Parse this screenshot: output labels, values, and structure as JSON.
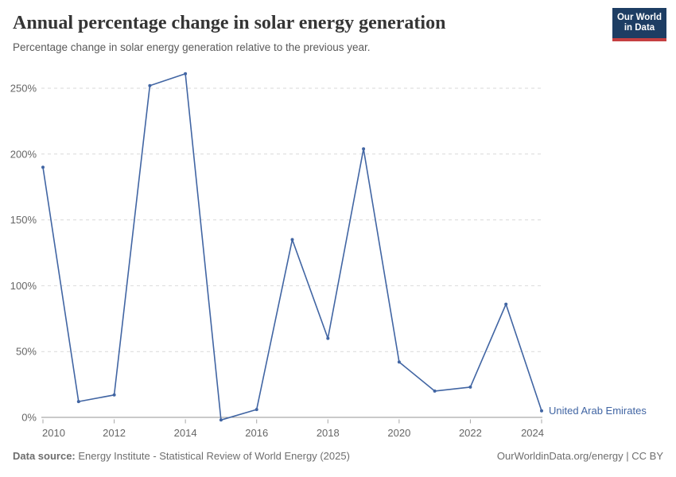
{
  "header": {
    "title": "Annual percentage change in solar energy generation",
    "subtitle": "Percentage change in solar energy generation relative to the previous year.",
    "logo": {
      "line1": "Our World",
      "line2": "in Data"
    }
  },
  "chart_data": {
    "type": "line",
    "title": "Annual percentage change in solar energy generation",
    "x": [
      2010,
      2011,
      2012,
      2013,
      2014,
      2015,
      2016,
      2017,
      2018,
      2019,
      2020,
      2021,
      2022,
      2023,
      2024
    ],
    "series": [
      {
        "name": "United Arab Emirates",
        "values": [
          190,
          12,
          17,
          252,
          261,
          -2,
          6,
          135,
          60,
          204,
          42,
          20,
          23,
          86,
          5
        ],
        "color": "#4165a3"
      }
    ],
    "xlabel": "",
    "ylabel": "",
    "ylim": [
      0,
      250
    ],
    "ytick_values": [
      0,
      50,
      100,
      150,
      200,
      250
    ],
    "ytick_labels": [
      "0%",
      "50%",
      "100%",
      "150%",
      "200%",
      "250%"
    ],
    "xtick_values": [
      2010,
      2012,
      2014,
      2016,
      2018,
      2020,
      2022,
      2024
    ],
    "xtick_labels": [
      "2010",
      "2012",
      "2014",
      "2016",
      "2018",
      "2020",
      "2022",
      "2024"
    ],
    "grid": "horizontal-dashed",
    "legend": "inline-label-right-of-last-point",
    "unit": "%"
  },
  "colors": {
    "line": "#4165a3",
    "grid": "#d9d9d9",
    "axis": "#969696",
    "tick": "#a6a6a6",
    "tick_text": "#666666",
    "logo_bg": "#1d3d63",
    "logo_accent": "#c53f41"
  },
  "footer": {
    "source_label": "Data source:",
    "source_text": "Energy Institute - Statistical Review of World Energy (2025)",
    "url": "OurWorldinData.org/energy",
    "separator": " | ",
    "license": "CC BY"
  }
}
